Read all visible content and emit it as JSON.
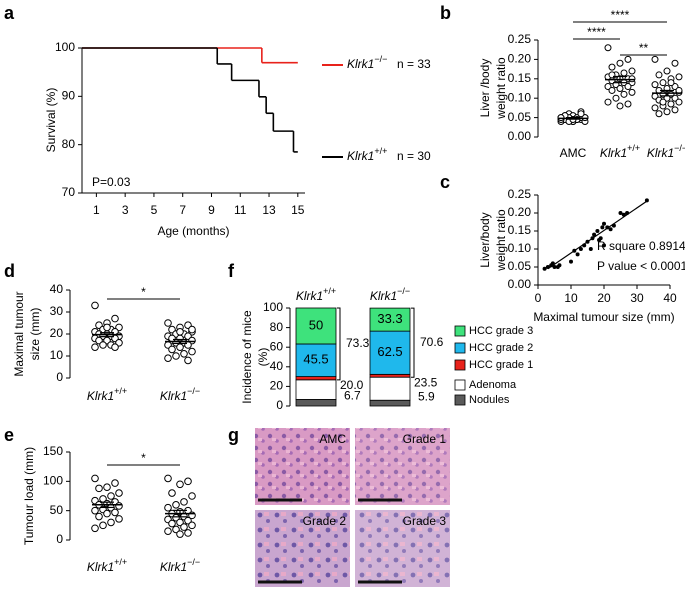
{
  "chart_data": [
    {
      "type": "step",
      "panel": "a",
      "ylabel": "Survival (%)",
      "xlabel": "Age (months)",
      "xlim": [
        0,
        15.5
      ],
      "xticks": [
        1,
        3,
        5,
        7,
        9,
        11,
        13,
        15
      ],
      "ylim": [
        70,
        100
      ],
      "yticks": [
        70,
        80,
        90,
        100
      ],
      "annotation": "P=0.03",
      "series": [
        {
          "name": "Klrk1−/−",
          "note": "n = 33",
          "color": "#e8221b",
          "x": [
            0,
            12.5,
            15
          ],
          "values": [
            100,
            96.97,
            96.97
          ]
        },
        {
          "name": "Klrk1+/+",
          "note": "n = 30",
          "color": "#000000",
          "x": [
            0,
            9.4,
            10.4,
            12.3,
            12.8,
            13.3,
            14.7,
            15
          ],
          "values": [
            100,
            96.7,
            93.3,
            89.9,
            86.5,
            82.8,
            78.5,
            78.5
          ]
        }
      ]
    },
    {
      "type": "dotplot",
      "panel": "b",
      "ylabel": [
        "Liver /body",
        "weight ratio"
      ],
      "categories": [
        "AMC",
        "Klrk1+/+",
        "Klrk1−/−"
      ],
      "ylim": [
        0,
        0.25
      ],
      "yticks": [
        {
          "value": 0,
          "label": "0.00"
        },
        {
          "value": 0.05,
          "label": "0.05"
        },
        {
          "value": 0.1,
          "label": "0.10"
        },
        {
          "value": 0.15,
          "label": "0.15"
        },
        {
          "value": 0.2,
          "label": "0.20"
        },
        {
          "value": 0.25,
          "label": "0.25"
        }
      ],
      "groups": [
        [
          0.05,
          0.045,
          0.04,
          0.055,
          0.05,
          0.045,
          0.06,
          0.04,
          0.05,
          0.055,
          0.045,
          0.04,
          0.05,
          0.05,
          0.045,
          0.065,
          0.04,
          0.055,
          0.05,
          0.045,
          0.04,
          0.05,
          0.06,
          0.045
        ],
        [
          0.23,
          0.2,
          0.19,
          0.18,
          0.17,
          0.165,
          0.16,
          0.155,
          0.15,
          0.15,
          0.145,
          0.14,
          0.14,
          0.135,
          0.13,
          0.13,
          0.125,
          0.12,
          0.115,
          0.11,
          0.1,
          0.09,
          0.085,
          0.08,
          0.16,
          0.15
        ],
        [
          0.2,
          0.19,
          0.17,
          0.16,
          0.155,
          0.15,
          0.14,
          0.135,
          0.13,
          0.125,
          0.12,
          0.115,
          0.11,
          0.11,
          0.105,
          0.1,
          0.1,
          0.095,
          0.09,
          0.085,
          0.08,
          0.075,
          0.07,
          0.065,
          0.06,
          0.12,
          0.14,
          0.09
        ]
      ],
      "mean": [
        0.048,
        0.148,
        0.113
      ],
      "sem": [
        0.002,
        0.008,
        0.007
      ],
      "significance": [
        {
          "pair": [
            0,
            2
          ],
          "label": "****"
        },
        {
          "pair": [
            0,
            1
          ],
          "label": "****"
        },
        {
          "pair": [
            1,
            2
          ],
          "label": "**"
        }
      ]
    },
    {
      "type": "scatter",
      "panel": "c",
      "ylabel": [
        "Liver/body",
        "weight ratio"
      ],
      "xlabel": "Maximal tumour size (mm)",
      "xlim": [
        0,
        40
      ],
      "xticks": [
        0,
        10,
        20,
        30,
        40
      ],
      "ylim": [
        0,
        0.25
      ],
      "yticks": [
        {
          "value": 0,
          "label": "0.00"
        },
        {
          "value": 0.05,
          "label": "0.05"
        },
        {
          "value": 0.1,
          "label": "0.10"
        },
        {
          "value": 0.15,
          "label": "0.15"
        },
        {
          "value": 0.2,
          "label": "0.20"
        },
        {
          "value": 0.25,
          "label": "0.25"
        }
      ],
      "x": [
        2,
        3,
        4,
        5,
        4.5,
        6,
        6.5,
        10,
        11,
        12,
        13,
        14,
        15,
        16,
        16.5,
        17,
        18,
        18.5,
        19,
        19.5,
        20,
        20,
        21,
        22,
        23,
        25,
        26,
        27,
        33
      ],
      "values": [
        0.045,
        0.05,
        0.055,
        0.05,
        0.06,
        0.05,
        0.055,
        0.065,
        0.095,
        0.085,
        0.1,
        0.11,
        0.12,
        0.1,
        0.13,
        0.14,
        0.15,
        0.125,
        0.13,
        0.16,
        0.17,
        0.11,
        0.16,
        0.155,
        0.165,
        0.2,
        0.195,
        0.2,
        0.235
      ],
      "fit": {
        "x": [
          3,
          33
        ],
        "y": [
          0.045,
          0.233
        ]
      },
      "annotations": [
        "R square 0.8914",
        "P value < 0.0001"
      ]
    },
    {
      "type": "dotplot",
      "panel": "d",
      "ylabel": [
        "Maximal tumour",
        "size (mm)"
      ],
      "categories": [
        "Klrk1+/+",
        "Klrk1−/−"
      ],
      "ylim": [
        0,
        40
      ],
      "yticks": [
        0,
        10,
        20,
        30,
        40
      ],
      "groups": [
        [
          33,
          27,
          25,
          24,
          23,
          22,
          22,
          21,
          21,
          20,
          20,
          19,
          19,
          19,
          18,
          18,
          17,
          17,
          16,
          15,
          15,
          14,
          14,
          23
        ],
        [
          25,
          24,
          23,
          22,
          21,
          20,
          20,
          19,
          19,
          18,
          17,
          17,
          16,
          16,
          15,
          15,
          14,
          13,
          12,
          11,
          10,
          9,
          8,
          21,
          18,
          22
        ]
      ],
      "mean": [
        19.7,
        16.6
      ],
      "sem": [
        0.9,
        0.9
      ],
      "significance": [
        {
          "pair": [
            0,
            1
          ],
          "label": "*"
        }
      ]
    },
    {
      "type": "dotplot",
      "panel": "e",
      "ylabel": [
        "Tumour load (mm)"
      ],
      "categories": [
        "Klrk1+/+",
        "Klrk1−/−"
      ],
      "ylim": [
        0,
        150
      ],
      "yticks": [
        0,
        50,
        100,
        150
      ],
      "groups": [
        [
          105,
          97,
          90,
          88,
          80,
          75,
          70,
          67,
          65,
          62,
          60,
          58,
          55,
          52,
          50,
          47,
          45,
          40,
          36,
          30,
          25,
          20
        ],
        [
          105,
          100,
          95,
          80,
          75,
          65,
          60,
          55,
          50,
          48,
          45,
          42,
          40,
          38,
          35,
          33,
          30,
          28,
          25,
          22,
          18,
          15,
          12,
          10
        ]
      ],
      "mean": [
        60,
        45
      ],
      "sem": [
        4.5,
        5.5
      ],
      "significance": [
        {
          "pair": [
            0,
            1
          ],
          "label": "*"
        }
      ]
    },
    {
      "type": "stacked_bar",
      "panel": "f",
      "ylabel": [
        "Incidence of mice",
        "(%)"
      ],
      "categories": [
        "Klrk1+/+",
        "Klrk1−/−"
      ],
      "ylim": [
        0,
        100
      ],
      "yticks": [
        0,
        20,
        40,
        60,
        80,
        100
      ],
      "hcc_total": [
        73.3,
        70.6
      ],
      "series": [
        {
          "name": "Nodules",
          "color": "#5a5a5a",
          "values": [
            6.7,
            5.9
          ]
        },
        {
          "name": "Adenoma",
          "color": "#ffffff",
          "values": [
            20,
            23.5
          ],
          "value_labels": [
            "20.0",
            "23.5"
          ]
        },
        {
          "name": "HCC grade 1",
          "color": "#e8221b",
          "values": [
            3.3,
            2.9
          ]
        },
        {
          "name": "HCC grade 2",
          "color": "#1fb8ec",
          "values": [
            33.3,
            44.1
          ],
          "hcc_share": [
            45.5,
            62.5
          ]
        },
        {
          "name": "HCC grade 3",
          "color": "#3ee27c",
          "values": [
            36.7,
            23.5
          ],
          "hcc_share": [
            50,
            33.3
          ]
        }
      ]
    }
  ],
  "histology": {
    "panel": "g",
    "tiles": [
      "AMC",
      "Grade 1",
      "Grade 2",
      "Grade 3"
    ]
  }
}
